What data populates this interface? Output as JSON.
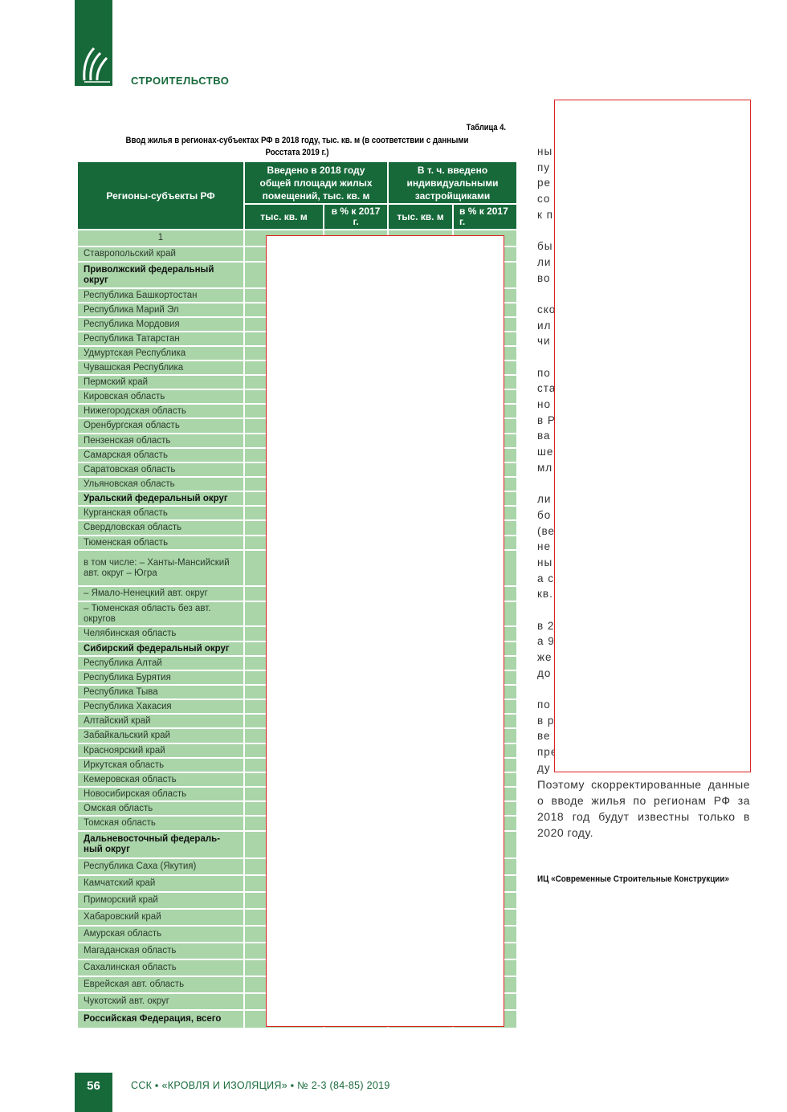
{
  "header": {
    "section": "СТРОИТЕЛЬСТВО",
    "logo": "ssk-logo",
    "brand_color": "#17693a"
  },
  "table": {
    "number": "Таблица 4.",
    "title": "Ввод жилья в регионах-субъектах РФ в 2018 году, тыс. кв. м (в соответствии с данными Росстата 2019 г.)",
    "col_region": "Регионы-субъекты РФ",
    "col_total": "Введено в 2018 году общей площади жилых помещений, тыс. кв. м",
    "col_individual": "В т. ч. введено индивидуальными застройщиками",
    "sub_thousand": "тыс. кв. м",
    "sub_percent": "в % к 2017 г.",
    "index_row": "1",
    "rows": [
      {
        "name": "Ставропольский край"
      },
      {
        "name": "Приволжский федеральный округ",
        "bold": true
      },
      {
        "name": "Республика Башкортостан"
      },
      {
        "name": "Республика Марий Эл"
      },
      {
        "name": "Республика Мордовия"
      },
      {
        "name": "Республика Татарстан"
      },
      {
        "name": "Удмуртская Республика"
      },
      {
        "name": "Чувашская Республика"
      },
      {
        "name": "Пермский край"
      },
      {
        "name": "Кировская область"
      },
      {
        "name": "Нижегородская область"
      },
      {
        "name": "Оренбургская область"
      },
      {
        "name": "Пензенская область"
      },
      {
        "name": "Самарская область"
      },
      {
        "name": "Саратовская область"
      },
      {
        "name": "Ульяновская область"
      },
      {
        "name": "Уральский федеральный округ",
        "bold": true
      },
      {
        "name": "Курганская область"
      },
      {
        "name": "Свердловская область"
      },
      {
        "name": "Тюменская область"
      },
      {
        "name": "в том числе: – Ханты-Мансийский авт. округ – Югра"
      },
      {
        "name": "– Ямало-Ненецкий авт. округ"
      },
      {
        "name": "– Тюменская область без авт. округов"
      },
      {
        "name": "Челябинская область"
      },
      {
        "name": "Сибирский федеральный округ",
        "bold": true
      },
      {
        "name": "Республика Алтай"
      },
      {
        "name": "Республика Бурятия"
      },
      {
        "name": "Республика Тыва"
      },
      {
        "name": "Республика Хакасия"
      },
      {
        "name": "Алтайский край"
      },
      {
        "name": "Забайкальский край"
      },
      {
        "name": "Красноярский край"
      },
      {
        "name": "Иркутская область"
      },
      {
        "name": "Кемеровская область"
      },
      {
        "name": "Новосибирская область"
      },
      {
        "name": "Омская область"
      },
      {
        "name": "Томская область"
      },
      {
        "name": "Дальневосточный федераль-ный округ",
        "bold": true
      },
      {
        "name": "Республика Саха (Якутия)"
      },
      {
        "name": "Камчатский край"
      },
      {
        "name": "Приморский край"
      },
      {
        "name": "Хабаровский край"
      },
      {
        "name": "Амурская область"
      },
      {
        "name": "Магаданская область"
      },
      {
        "name": "Сахалинская область"
      },
      {
        "name": "Еврейская авт. область"
      },
      {
        "name": "Чукотский авт. округ"
      },
      {
        "name": "Российская Федерация, всего",
        "bold": true
      }
    ]
  },
  "right_column": {
    "fragments": [
      "ны",
      "пу",
      "ре",
      "со",
      "к п",
      "",
      "бы",
      "ли",
      "во",
      "",
      "ско",
      "ил",
      "чи",
      "",
      "по",
      "ста",
      "но",
      "в Р",
      "ва",
      "ше",
      "мл",
      "",
      "ли",
      "бо",
      "(ве",
      "не",
      "ны",
      "а с",
      "кв.",
      "",
      "в 2",
      "а 9",
      "же",
      "до",
      "",
      "по",
      "в р",
      "ве",
      "пре",
      "ду"
    ],
    "paragraph": "Поэтому скорректированные данные о вводе жилья по регионам РФ за 2018 год будут известны только в 2020 году.",
    "signature": "ИЦ «Современные Строительные Конструкции»"
  },
  "footer": {
    "page": "56",
    "journal": "ССК ▪ «КРОВЛЯ И ИЗОЛЯЦИЯ» ▪ № 2-3 (84-85) 2019"
  },
  "redaction_color": "#dd2222"
}
